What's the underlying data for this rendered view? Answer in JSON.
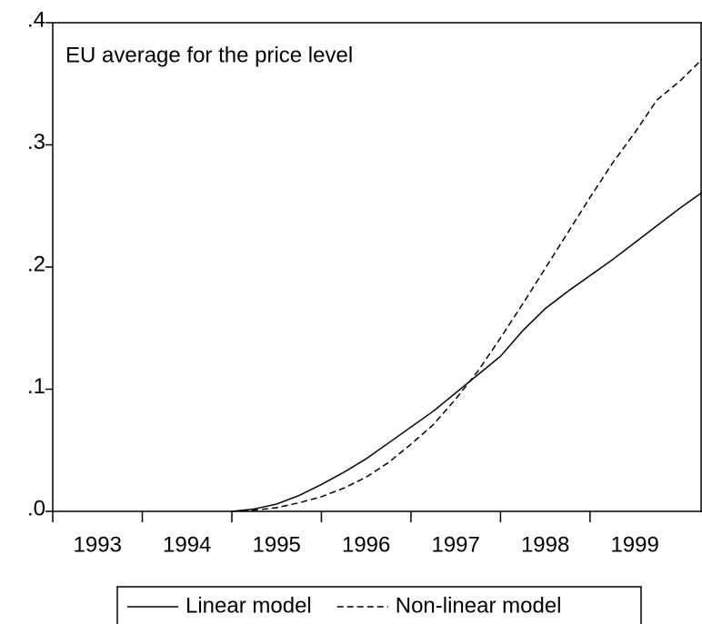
{
  "chart_data": {
    "type": "line",
    "title": "EU average for the price level",
    "x": [
      1995.0,
      1995.25,
      1995.5,
      1995.75,
      1996.0,
      1996.25,
      1996.5,
      1996.75,
      1997.0,
      1997.25,
      1997.5,
      1997.75,
      1998.0,
      1998.25,
      1998.5,
      1998.75,
      1999.0,
      1999.25,
      1999.5,
      1999.75,
      2000.0,
      2000.25
    ],
    "series": [
      {
        "name": "Linear model",
        "color": "#000000",
        "dash": "solid",
        "values": [
          0.0,
          0.002,
          0.006,
          0.013,
          0.022,
          0.032,
          0.043,
          0.056,
          0.069,
          0.082,
          0.097,
          0.112,
          0.127,
          0.148,
          0.166,
          0.18,
          0.193,
          0.206,
          0.22,
          0.234,
          0.248,
          0.261
        ]
      },
      {
        "name": "Non-linear model",
        "color": "#000000",
        "dash": "dashed",
        "values": [
          0.0,
          0.001,
          0.003,
          0.007,
          0.012,
          0.019,
          0.028,
          0.04,
          0.055,
          0.071,
          0.092,
          0.115,
          0.142,
          0.17,
          0.199,
          0.228,
          0.257,
          0.285,
          0.31,
          0.337,
          0.352,
          0.37
        ]
      }
    ],
    "xlim": [
      1993,
      2000.25
    ],
    "xticks": [
      1993,
      1994,
      1995,
      1996,
      1997,
      1998,
      1999
    ],
    "ylim": [
      0,
      0.4
    ],
    "yticks": [
      {
        "value": 0,
        "label": ".0"
      },
      {
        "value": 0.1,
        "label": ".1"
      },
      {
        "value": 0.2,
        "label": ".2"
      },
      {
        "value": 0.3,
        "label": ".3"
      },
      {
        "value": 0.4,
        "label": ".4"
      }
    ],
    "legend": "bottom"
  }
}
